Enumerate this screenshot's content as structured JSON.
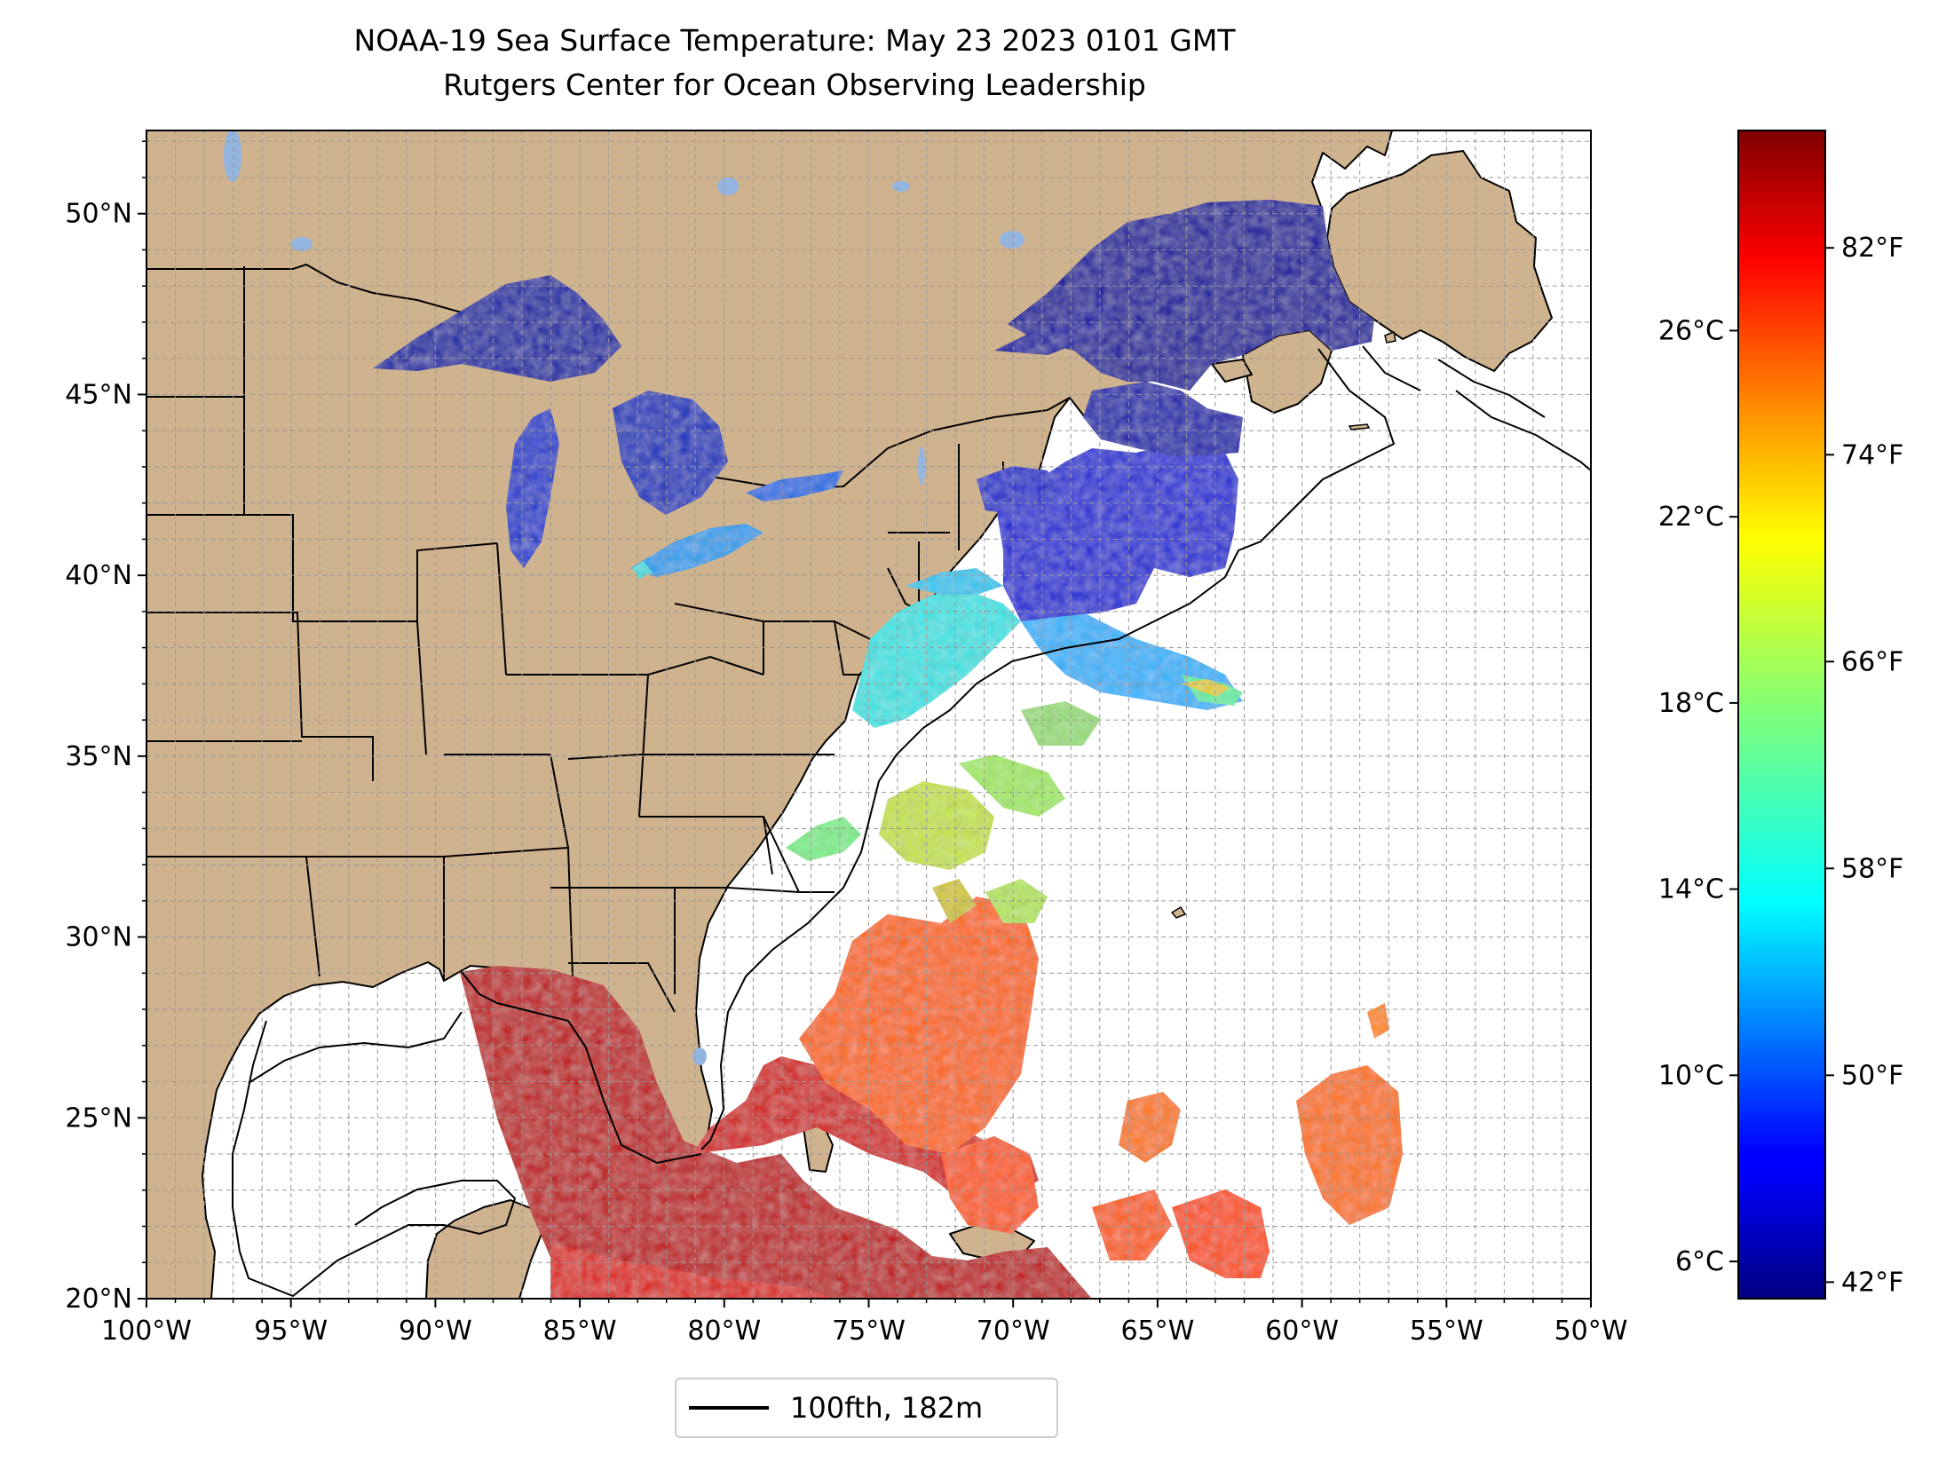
{
  "title": {
    "line1": "NOAA-19 Sea Surface Temperature: May 23 2023 0101 GMT",
    "line2": "Rutgers Center for Ocean Observing Leadership"
  },
  "map": {
    "projection": "plate-carree",
    "lon_range": [
      -100,
      -50
    ],
    "lat_range": [
      20,
      52.3
    ],
    "gridlines": true,
    "land_color": "#cfb38e",
    "lake_color": "#94b5e0",
    "ocean_no_data_color": "#ffffff",
    "x_tick_labels": [
      "100°W",
      "95°W",
      "90°W",
      "85°W",
      "80°W",
      "75°W",
      "70°W",
      "65°W",
      "60°W",
      "55°W",
      "50°W"
    ],
    "y_tick_labels": [
      "20°N",
      "25°N",
      "30°N",
      "35°N",
      "40°N",
      "45°N",
      "50°N"
    ]
  },
  "colorbar": {
    "colormap": "jet",
    "range_c": [
      5.2,
      30.3
    ],
    "celsius_ticks": [
      "6°C",
      "10°C",
      "14°C",
      "18°C",
      "22°C",
      "26°C"
    ],
    "fahrenheit_ticks": [
      "42°F",
      "50°F",
      "58°F",
      "66°F",
      "74°F",
      "82°F"
    ]
  },
  "legend": {
    "label": "100fth, 182m"
  },
  "colors": {
    "cold": "#00008b",
    "warm": "#cc0000"
  }
}
